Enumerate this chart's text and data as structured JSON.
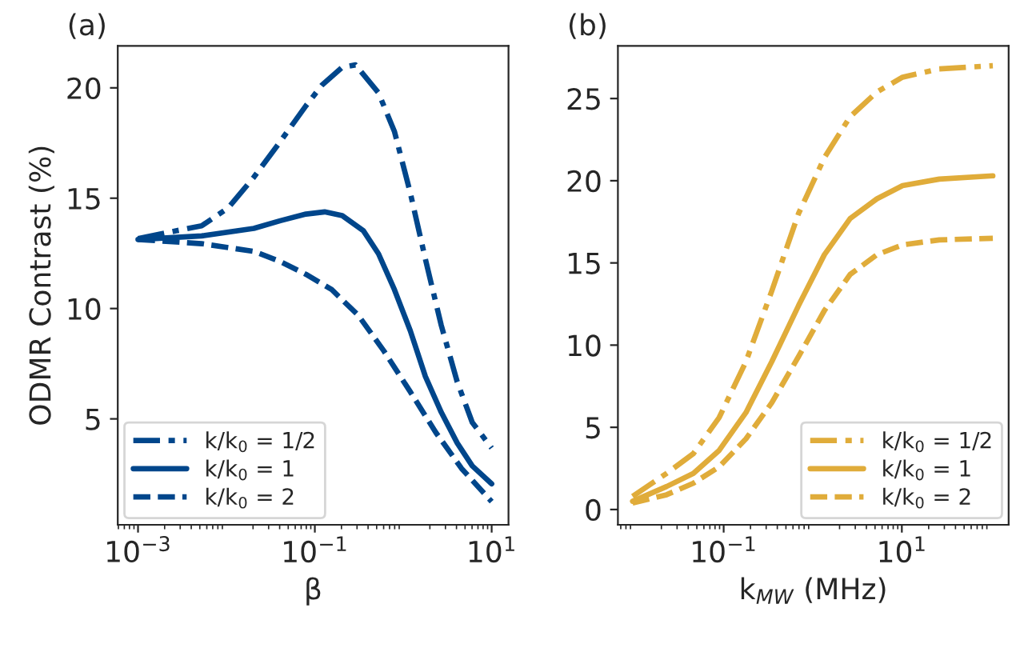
{
  "chart_data": [
    {
      "type": "line",
      "title": "(a)",
      "xlabel": "β",
      "ylabel": "ODMR Contrast (%)",
      "log": "x",
      "legend": "bottom left",
      "grid": false,
      "xlim": [
        0.00059,
        15.5
      ],
      "xticks": [
        {
          "value": 0.001,
          "label": "10$^{−3}$"
        },
        {
          "value": 0.1,
          "label": "10$^{−1}$"
        },
        {
          "value": 10,
          "label": "10$^{1}$"
        }
      ],
      "ylim": [
        0.2,
        21.9
      ],
      "yticks": [
        5,
        10,
        15,
        20
      ],
      "series": [
        {
          "name": "k/k$_{0}$ = 1/2",
          "color": "#00468b",
          "line_style": "dashdot",
          "x": [
            0.001,
            0.00269,
            0.00525,
            0.01047,
            0.0204,
            0.0407,
            0.0794,
            0.12,
            0.204,
            0.288,
            0.525,
            0.794,
            1.2,
            1.78,
            2.69,
            4.07,
            6.03,
            10
          ],
          "values": [
            13.17,
            13.52,
            13.75,
            14.56,
            15.95,
            17.57,
            19.19,
            20.12,
            20.93,
            21.04,
            19.77,
            18.03,
            15.25,
            12.24,
            9.24,
            6.69,
            4.84,
            3.68
          ]
        },
        {
          "name": "k/k$_{0}$ = 1",
          "color": "#00468b",
          "line_style": "solid",
          "x": [
            0.001,
            0.00525,
            0.0204,
            0.0407,
            0.0794,
            0.129,
            0.204,
            0.355,
            0.525,
            0.794,
            1.2,
            1.78,
            2.69,
            4.07,
            6.03,
            10
          ],
          "values": [
            13.13,
            13.29,
            13.63,
            13.98,
            14.28,
            14.38,
            14.21,
            13.52,
            12.48,
            10.86,
            9.0,
            6.92,
            5.3,
            3.91,
            2.87,
            2.06
          ]
        },
        {
          "name": "k/k$_{0}$ = 2",
          "color": "#00468b",
          "line_style": "dashed",
          "x": [
            0.001,
            0.00525,
            0.0204,
            0.0407,
            0.0794,
            0.155,
            0.309,
            0.603,
            1.2,
            2.34,
            4.57,
            10
          ],
          "values": [
            13.13,
            12.94,
            12.59,
            12.13,
            11.55,
            10.86,
            9.7,
            8.08,
            6.23,
            4.38,
            2.75,
            1.25
          ]
        }
      ]
    },
    {
      "type": "line",
      "title": "(b)",
      "xlabel": "k$_{MW}$ (MHz)",
      "log": "x",
      "legend": "bottom right",
      "grid": false,
      "xlim": [
        0.0065,
        158
      ],
      "xticks": [
        {
          "value": 0.1,
          "label": "10$^{−1}$"
        },
        {
          "value": 10,
          "label": "10$^{1}$"
        }
      ],
      "ylim": [
        -0.93,
        28.2
      ],
      "yticks": [
        0,
        5,
        10,
        15,
        20,
        25
      ],
      "series": [
        {
          "name": "k/k$_{0}$ = 1/2",
          "color": "#e0ac3a",
          "line_style": "dashdot",
          "x": [
            0.0095,
            0.0229,
            0.0457,
            0.0891,
            0.178,
            0.347,
            0.692,
            1.35,
            2.63,
            5.25,
            10.2,
            26.3,
            105
          ],
          "values": [
            0.8,
            2.2,
            3.4,
            5.6,
            9.0,
            13.3,
            18.0,
            21.4,
            23.9,
            25.4,
            26.3,
            26.8,
            27.0
          ]
        },
        {
          "name": "k/k$_{0}$ = 1",
          "color": "#e0ac3a",
          "line_style": "solid",
          "x": [
            0.0095,
            0.0229,
            0.0457,
            0.0891,
            0.178,
            0.347,
            0.692,
            1.35,
            2.63,
            5.25,
            10.2,
            26.3,
            105
          ],
          "values": [
            0.5,
            1.4,
            2.2,
            3.6,
            5.9,
            9.0,
            12.4,
            15.5,
            17.7,
            18.9,
            19.7,
            20.1,
            20.3
          ]
        },
        {
          "name": "k/k$_{0}$ = 2",
          "color": "#e0ac3a",
          "line_style": "dashed",
          "x": [
            0.0095,
            0.0229,
            0.0457,
            0.0891,
            0.178,
            0.347,
            0.692,
            1.35,
            2.63,
            5.25,
            10.2,
            26.3,
            105
          ],
          "values": [
            0.4,
            0.9,
            1.6,
            2.6,
            4.3,
            6.5,
            9.3,
            12.1,
            14.3,
            15.5,
            16.1,
            16.4,
            16.5
          ]
        }
      ]
    }
  ]
}
